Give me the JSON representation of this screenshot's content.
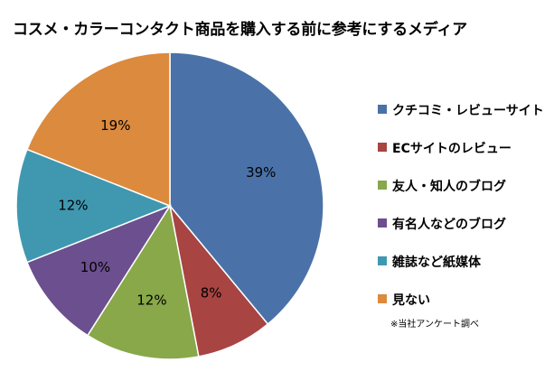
{
  "chart_data": {
    "type": "pie",
    "title": "コスメ・カラーコンタクト商品を購入する前に参考にするメディア",
    "categories": [
      "クチコミ・レビューサイト",
      "ECサイトのレビュー",
      "友人・知人のブログ",
      "有名人などのブログ",
      "雑誌など紙媒体",
      "見ない"
    ],
    "values": [
      39,
      8,
      12,
      10,
      12,
      19
    ],
    "value_labels": [
      "39%",
      "8%",
      "12%",
      "10%",
      "12%",
      "19%"
    ],
    "colors": [
      "#4A72A8",
      "#A84442",
      "#88A84A",
      "#6C4F8E",
      "#3F98B0",
      "#DB8A3E"
    ],
    "start": "12 o'clock",
    "direction": "clockwise",
    "legend_position": "right"
  },
  "note": "※当社アンケート調べ"
}
